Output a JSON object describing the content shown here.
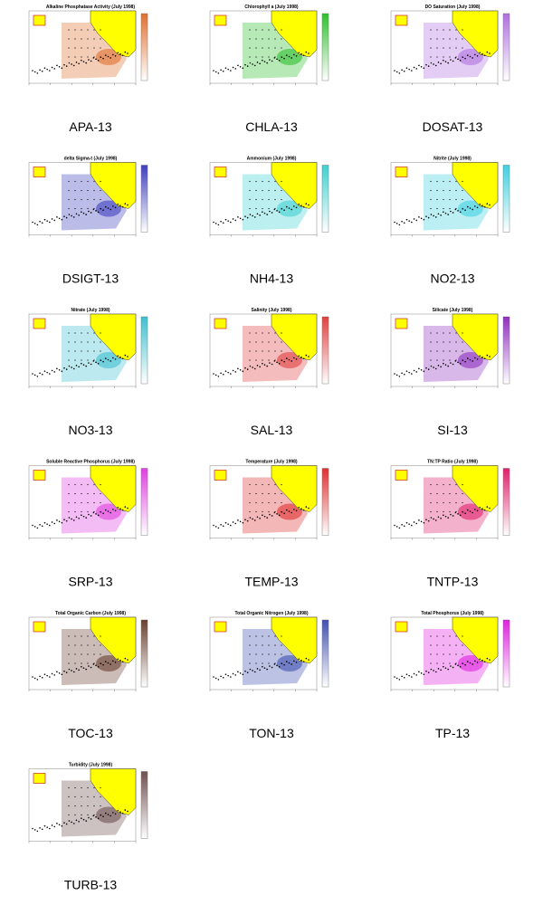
{
  "items": [
    {
      "title": "Alkaline Phosphatase Activity (July 1998)",
      "label": "APA-13",
      "color": "#e07030"
    },
    {
      "title": "Chlorophyll a (July 1998)",
      "label": "CHLA-13",
      "color": "#30c030"
    },
    {
      "title": "DO Saturation (July 1998)",
      "label": "DOSAT-13",
      "color": "#b070e0"
    },
    {
      "title": "delta Sigma-t (July 1998)",
      "label": "DSIGT-13",
      "color": "#4040c0"
    },
    {
      "title": "Ammonium (July 1998)",
      "label": "NH4-13",
      "color": "#40d0d0"
    },
    {
      "title": "Nitrite (July 1998)",
      "label": "NO2-13",
      "color": "#40d0e0"
    },
    {
      "title": "Nitrate (July 1998)",
      "label": "NO3-13",
      "color": "#40c0d0"
    },
    {
      "title": "Salinity (July 1998)",
      "label": "SAL-13",
      "color": "#e04040"
    },
    {
      "title": "Silicate (July 1998)",
      "label": "SI-13",
      "color": "#9030c0"
    },
    {
      "title": "Soluble Reactive Phosphorus (July 1998)",
      "label": "SRP-13",
      "color": "#e040e0"
    },
    {
      "title": "Temperature (July 1998)",
      "label": "TEMP-13",
      "color": "#e03030"
    },
    {
      "title": "TN:TP Ratio (July 1998)",
      "label": "TNTP-13",
      "color": "#e0206a"
    },
    {
      "title": "Total Organic Carbon (July 1998)",
      "label": "TOC-13",
      "color": "#6a4030"
    },
    {
      "title": "Total Organic Nitrogen (July 1998)",
      "label": "TON-13",
      "color": "#4050b0"
    },
    {
      "title": "Total Phosphorus (July 1998)",
      "label": "TP-13",
      "color": "#e020e0"
    },
    {
      "title": "Turbidity (July 1998)",
      "label": "TURB-13",
      "color": "#705050"
    }
  ]
}
